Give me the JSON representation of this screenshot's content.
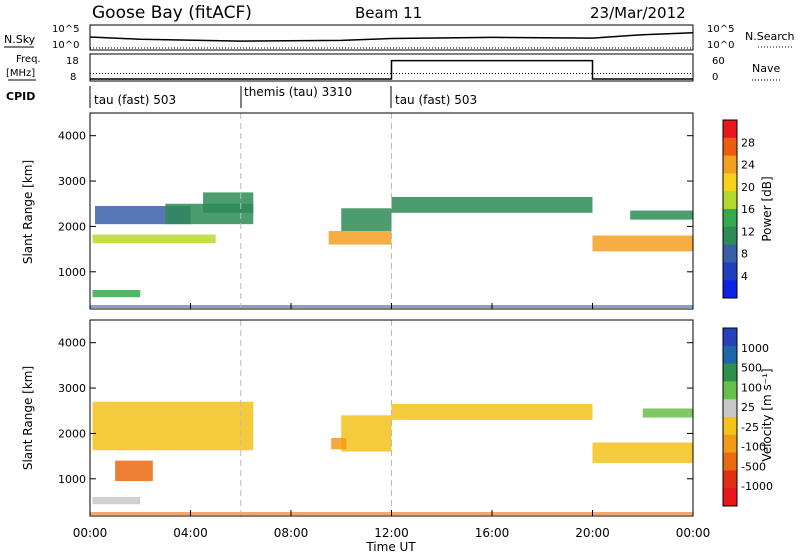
{
  "header": {
    "station": "Goose Bay (fitACF)",
    "beam": "Beam 11",
    "date": "23/Mar/2012"
  },
  "strip_labels": {
    "nsky": "N.Sky",
    "nsearch": "N.Search",
    "freq": "Freq.",
    "freq_unit": "[MHz]",
    "nave": "Nave",
    "cpid": "CPID",
    "noise_left_ticks": [
      "10^5",
      "10^0"
    ],
    "noise_right_ticks": [
      "10^5",
      "10^0"
    ],
    "freq_ticks": [
      "18",
      "8"
    ],
    "nave_ticks": [
      "60",
      "0"
    ]
  },
  "cpid_segments": [
    {
      "label": "tau (fast) 503",
      "start_h": 0,
      "end_h": 6
    },
    {
      "label": "themis (tau) 3310",
      "start_h": 6,
      "end_h": 12
    },
    {
      "label": "tau (fast) 503",
      "start_h": 12,
      "end_h": 24
    }
  ],
  "power_colorbar": {
    "title": "Power [dB]",
    "ticks": [
      "28",
      "24",
      "20",
      "16",
      "12",
      "8",
      "4"
    ],
    "colors": [
      "#e8161a",
      "#f05b14",
      "#f5a021",
      "#f6d21b",
      "#b5d92b",
      "#35a94d",
      "#2e8b57",
      "#3a5ea9",
      "#1f3fbf",
      "#0c23e6"
    ]
  },
  "velocity_colorbar": {
    "title": "Velocity [m s⁻¹]",
    "ticks": [
      "1000",
      "500",
      "100",
      "25",
      "-25",
      "-100",
      "-500",
      "-1000"
    ],
    "colors": [
      "#2742b8",
      "#1f67a8",
      "#2f8f4e",
      "#67c04a",
      "#c8c8c8",
      "#f3c21b",
      "#f29a18",
      "#ea6a12",
      "#e02f14",
      "#e8161a"
    ]
  },
  "axes": {
    "ylabel": "Slant Range [km]",
    "xlabel": "Time UT",
    "yticks": [
      "4000",
      "3000",
      "2000",
      "1000"
    ],
    "xticks": [
      "00:00",
      "04:00",
      "08:00",
      "12:00",
      "16:00",
      "20:00",
      "00:00"
    ]
  },
  "chart_data": [
    {
      "type": "line",
      "name": "noise",
      "series": [
        {
          "name": "N.Sky",
          "x": [
            0,
            2,
            6,
            10,
            12,
            16,
            20,
            22,
            24
          ],
          "values": [
            2.9,
            2.3,
            1.8,
            2.0,
            2.5,
            2.8,
            2.6,
            3.5,
            4.0
          ]
        },
        {
          "name": "N.Search",
          "x": [
            0,
            24
          ],
          "values": [
            0,
            0
          ]
        }
      ],
      "xlim": [
        0,
        24
      ]
    },
    {
      "type": "line",
      "name": "frequency",
      "series": [
        {
          "name": "Freq.",
          "x": [
            0,
            24
          ],
          "values": [
            10.5,
            10.5
          ]
        },
        {
          "name": "Nave",
          "x": [
            0,
            12,
            12,
            20,
            20,
            24
          ],
          "values": [
            0,
            0,
            50,
            50,
            0,
            0
          ]
        }
      ],
      "xlim": [
        0,
        24
      ],
      "ylim": [
        8,
        18
      ]
    },
    {
      "type": "heatmap",
      "name": "power",
      "title": "",
      "xlabel": "Time UT",
      "ylabel": "Slant Range [km]",
      "xlim": [
        0,
        24
      ],
      "ylim": [
        180,
        4500
      ],
      "colorbar": "Power [dB]",
      "clim": [
        0,
        30
      ],
      "regions": [
        {
          "t": [
            0.1,
            2.0
          ],
          "r": [
            440,
            600
          ],
          "value": 14
        },
        {
          "t": [
            0.1,
            5.0
          ],
          "r": [
            1630,
            1820
          ],
          "value": 16
        },
        {
          "t": [
            0.2,
            4.0
          ],
          "r": [
            2050,
            2450
          ],
          "value": 8
        },
        {
          "t": [
            3.0,
            6.5
          ],
          "r": [
            2050,
            2500
          ],
          "value": 10
        },
        {
          "t": [
            4.5,
            6.5
          ],
          "r": [
            2300,
            2750
          ],
          "value": 12
        },
        {
          "t": [
            9.5,
            12.0
          ],
          "r": [
            1600,
            1900
          ],
          "value": 22
        },
        {
          "t": [
            10.0,
            12.0
          ],
          "r": [
            1900,
            2400
          ],
          "value": 10
        },
        {
          "t": [
            12.0,
            20.0
          ],
          "r": [
            2300,
            2650
          ],
          "value": 10
        },
        {
          "t": [
            20.0,
            24.0
          ],
          "r": [
            1450,
            1800
          ],
          "value": 22
        },
        {
          "t": [
            21.5,
            24.0
          ],
          "r": [
            2150,
            2350
          ],
          "value": 12
        }
      ]
    },
    {
      "type": "heatmap",
      "name": "velocity",
      "title": "",
      "xlabel": "Time UT",
      "ylabel": "Slant Range [km]",
      "xlim": [
        0,
        24
      ],
      "ylim": [
        180,
        4500
      ],
      "colorbar": "Velocity [m s⁻¹]",
      "clim": [
        -1000,
        1000
      ],
      "regions": [
        {
          "t": [
            0.1,
            2.0
          ],
          "r": [
            440,
            600
          ],
          "value": 100
        },
        {
          "t": [
            0.1,
            6.5
          ],
          "r": [
            1630,
            2700
          ],
          "value": 0
        },
        {
          "t": [
            10.0,
            12.0
          ],
          "r": [
            1600,
            2400
          ],
          "value": 0
        },
        {
          "t": [
            9.6,
            10.2
          ],
          "r": [
            1650,
            1900
          ],
          "value": -300
        },
        {
          "t": [
            12.0,
            20.0
          ],
          "r": [
            2300,
            2650
          ],
          "value": 0
        },
        {
          "t": [
            20.0,
            24.0
          ],
          "r": [
            1350,
            1800
          ],
          "value": 0
        },
        {
          "t": [
            22.0,
            24.0
          ],
          "r": [
            2350,
            2550
          ],
          "value": 300
        },
        {
          "t": [
            1.0,
            2.5
          ],
          "r": [
            950,
            1400
          ],
          "value": -400
        }
      ]
    }
  ]
}
